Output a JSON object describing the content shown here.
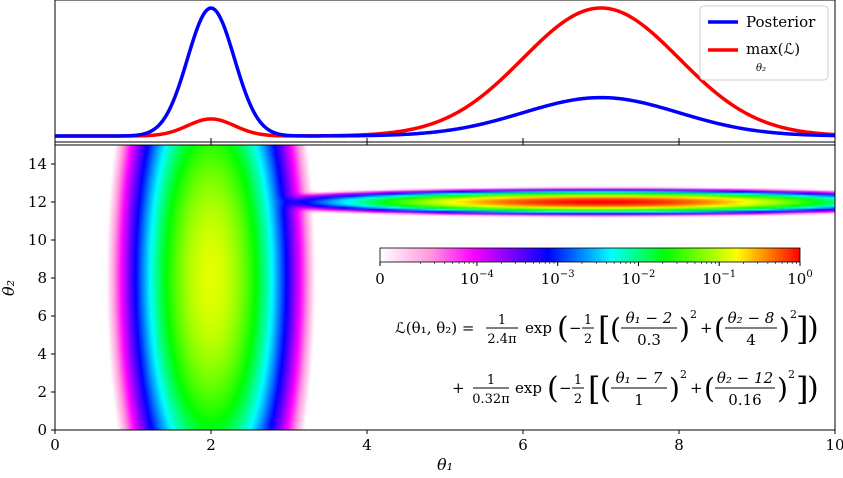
{
  "chart_data": [
    {
      "type": "line",
      "panel": "top",
      "x_range": [
        0,
        10
      ],
      "legend_placement": "top-right",
      "series": [
        {
          "name": "Posterior",
          "color": "#0000ff",
          "x": [
            0,
            1,
            1.5,
            1.8,
            2,
            2.2,
            2.5,
            3,
            4,
            5,
            6,
            7,
            8,
            9,
            10
          ],
          "values": [
            0.0,
            0.004,
            0.25,
            0.8,
            1.0,
            0.8,
            0.25,
            0.004,
            0.0,
            0.038,
            0.24,
            0.35,
            0.24,
            0.038,
            0.0
          ]
        },
        {
          "name": "max(ℒ) over θ₂",
          "color": "#ff0000",
          "x": [
            0,
            1,
            1.5,
            1.8,
            2,
            2.2,
            2.5,
            3,
            4,
            5,
            6,
            7,
            8,
            9,
            10
          ],
          "values": [
            0.0,
            0.0005,
            0.036,
            0.11,
            0.14,
            0.11,
            0.036,
            0.0005,
            0.011,
            0.135,
            0.6,
            1.0,
            0.6,
            0.135,
            0.0
          ]
        }
      ],
      "legend": {
        "posterior_label": "Posterior",
        "max_label": "max(ℒ)",
        "max_subscript": "θ₂"
      }
    },
    {
      "type": "heatmap",
      "panel": "bottom",
      "xlabel": "θ₁",
      "ylabel": "θ₂",
      "xlim": [
        0,
        10
      ],
      "ylim": [
        0,
        15
      ],
      "x_ticks": [
        "0",
        "2",
        "4",
        "6",
        "8",
        "10"
      ],
      "y_ticks": [
        "0",
        "2",
        "4",
        "6",
        "8",
        "10",
        "12",
        "14"
      ],
      "colormap": "gist_ncar-like",
      "color_scale": "log",
      "components": [
        {
          "weight_label": "1/(2.4π)",
          "mu1": 2,
          "mu2": 8,
          "sigma1": 0.3,
          "sigma2": 4,
          "norm": 0.1326
        },
        {
          "weight_label": "1/(0.32π)",
          "mu1": 7,
          "mu2": 12,
          "sigma1": 1,
          "sigma2": 0.16,
          "norm": 0.9947
        }
      ],
      "colorbar": {
        "placement": "inside-right",
        "ticks": [
          {
            "base": "0",
            "exp": ""
          },
          {
            "base": "10",
            "exp": "−4"
          },
          {
            "base": "10",
            "exp": "−3"
          },
          {
            "base": "10",
            "exp": "−2"
          },
          {
            "base": "10",
            "exp": "−1"
          },
          {
            "base": "10",
            "exp": "0"
          }
        ],
        "colors": [
          "#ffffff",
          "#ff99dd",
          "#ff00ff",
          "#0000ff",
          "#00ffff",
          "#00ff00",
          "#ffff00",
          "#ff0000"
        ]
      },
      "equation": {
        "line1": {
          "lhs": "ℒ(θ₁, θ₂) =",
          "frac_num": "1",
          "frac_den": "2.4π",
          "exp": "exp",
          "half_num": "1",
          "half_den": "2",
          "t1_num": "θ₁ − 2",
          "t1_den": "0.3",
          "t2_num": "θ₂ − 8",
          "t2_den": "4",
          "sq": "2"
        },
        "line2": {
          "plus": "+",
          "frac_num": "1",
          "frac_den": "0.32π",
          "exp": "exp",
          "half_num": "1",
          "half_den": "2",
          "t1_num": "θ₁ − 7",
          "t1_den": "1",
          "t2_num": "θ₂ − 12",
          "t2_den": "0.16",
          "sq": "2"
        }
      }
    }
  ]
}
